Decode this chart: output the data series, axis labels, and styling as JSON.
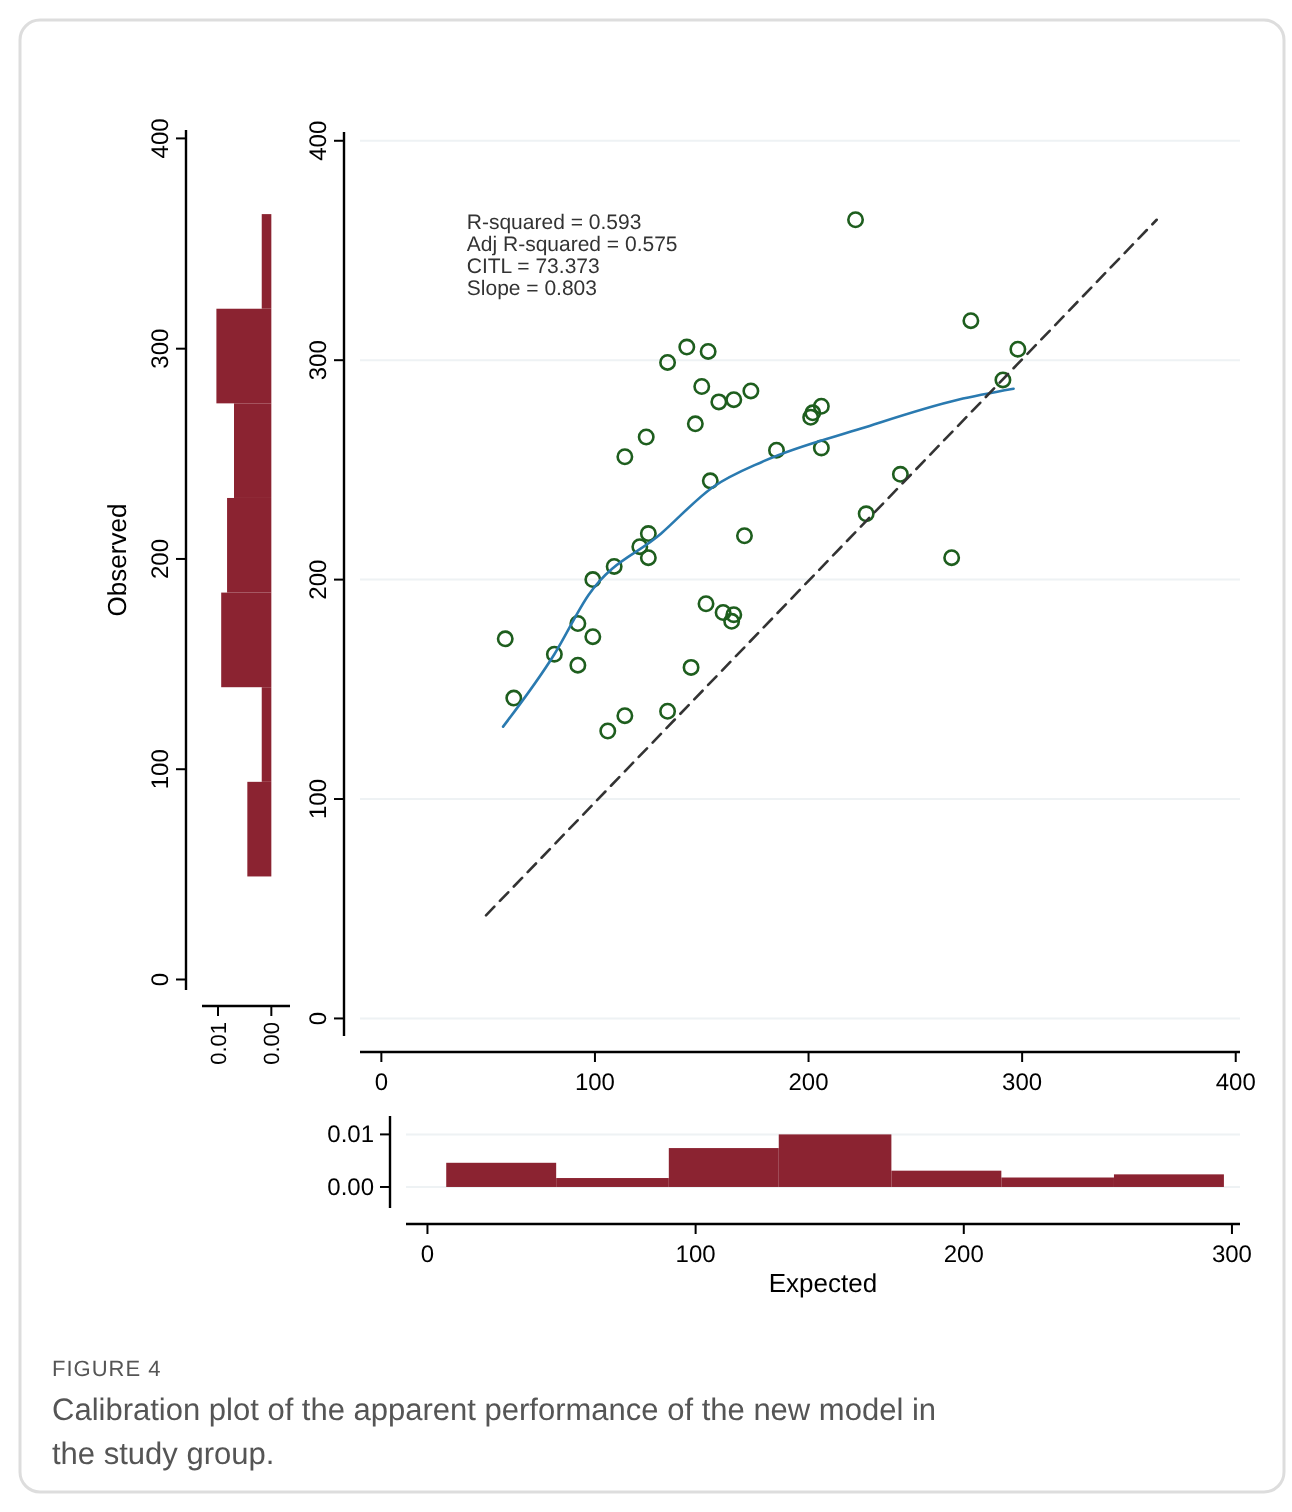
{
  "chart_data": [
    {
      "type": "histogram",
      "orientation": "horizontal",
      "ylabel": "Observed",
      "color": "#8b2331",
      "bins": [
        49,
        94,
        139,
        184,
        229,
        274,
        319,
        364
      ],
      "values": [
        0.0045,
        0.0018,
        0.0094,
        0.0083,
        0.007,
        0.0103,
        0.0018
      ],
      "xlim": [
        0.013,
        -0.0035
      ],
      "xticks": [
        {
          "value": 0.01,
          "label": "0.01"
        },
        {
          "value": 0,
          "label": "0.00"
        }
      ],
      "ylim": [
        -5,
        404
      ],
      "yticks": [
        0,
        100,
        200,
        300,
        400
      ],
      "grid": false
    },
    {
      "type": "scatter",
      "xlim": [
        -10,
        402
      ],
      "ylim": [
        -8,
        404
      ],
      "xticks": [
        0,
        100,
        200,
        300,
        400
      ],
      "yticks": [
        0,
        100,
        200,
        300,
        400
      ],
      "grid": "y",
      "annotations": [
        "R-squared = 0.593",
        "Adj R-squared = 0.575",
        "CITL = 73.373",
        "Slope = 0.803"
      ],
      "series": [
        {
          "type": "scatter",
          "marker": "circle",
          "color": "#1e5e1e",
          "x": [
            58,
            62,
            81,
            92,
            92,
            99,
            99,
            109,
            121,
            125,
            125,
            114,
            124,
            134,
            143,
            153,
            150,
            147,
            158,
            165,
            173,
            154,
            170,
            185,
            152,
            160,
            165,
            164,
            106,
            114,
            134,
            145,
            222,
            276,
            298,
            291,
            202,
            206,
            201,
            206,
            243,
            227,
            267
          ],
          "values": [
            173,
            146,
            166,
            161,
            180,
            174,
            200,
            206,
            215,
            221,
            210,
            256,
            265,
            299,
            306,
            304,
            288,
            271,
            281,
            282,
            286,
            245,
            220,
            259,
            189,
            185,
            184,
            181,
            131,
            138,
            140,
            160,
            364,
            318,
            305,
            291,
            276,
            279,
            274,
            260,
            248,
            230,
            210
          ]
        },
        {
          "type": "line",
          "line_style": "solid",
          "color": "#2a7ab0",
          "x": [
            57,
            81,
            97,
            131,
            155,
            179,
            225,
            270,
            296
          ],
          "values": [
            133,
            166,
            193,
            221,
            242,
            254,
            269,
            282,
            287
          ]
        },
        {
          "type": "line",
          "line_style": "dashed",
          "color": "#333333",
          "x": [
            49,
            363
          ],
          "values": [
            47,
            364
          ]
        }
      ]
    },
    {
      "type": "histogram",
      "xlabel": "Expected",
      "color": "#8b2331",
      "bins": [
        7,
        48,
        90,
        131,
        173,
        214,
        256,
        297
      ],
      "values": [
        0.0046,
        0.0017,
        0.0074,
        0.01,
        0.0031,
        0.0018,
        0.0024
      ],
      "xlim": [
        -8,
        303
      ],
      "xticks": [
        0,
        100,
        200,
        300
      ],
      "ylim": [
        -0.004,
        0.0135
      ],
      "yticks": [
        {
          "value": 0.01,
          "label": "0.01"
        },
        {
          "value": 0,
          "label": "0.00"
        }
      ],
      "grid": "y",
      "annotations": [
        "FIGURE 4",
        "Calibration plot of the apparent performance of the new model in the study group."
      ]
    }
  ]
}
